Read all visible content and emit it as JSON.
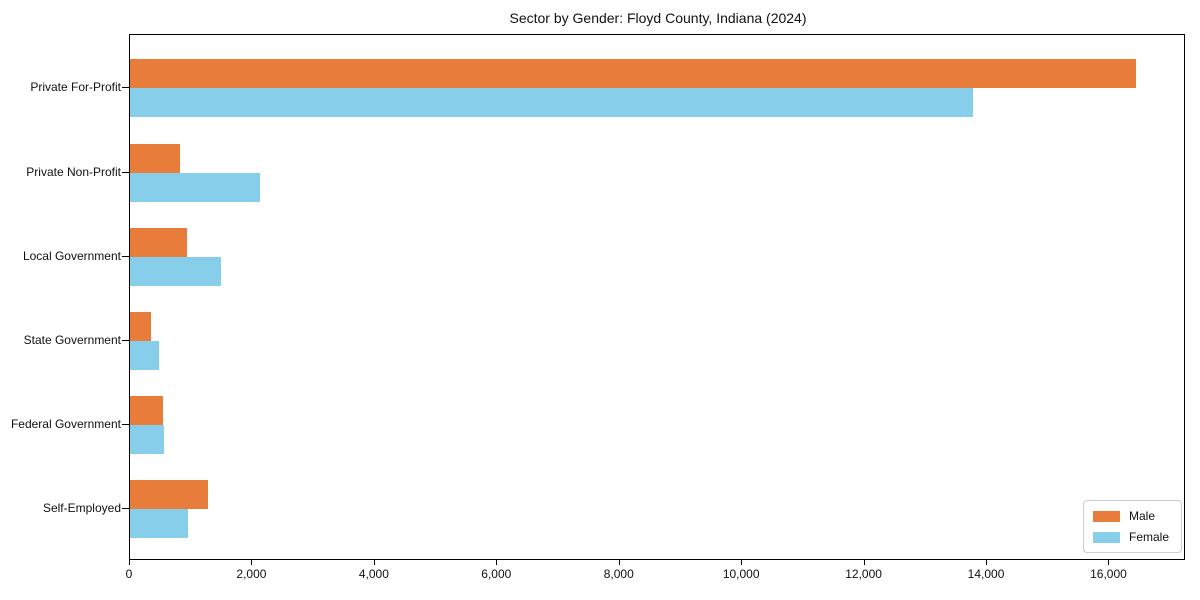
{
  "title": "Sector by Gender: Floyd County, Indiana (2024)",
  "colors": {
    "male": "#e87d3b",
    "female": "#87ceeb",
    "axis": "#000000",
    "legend_border": "#cccccc",
    "background": "#ffffff"
  },
  "legend": {
    "position": "lower-right",
    "items": [
      {
        "label": "Male",
        "color": "#e87d3b"
      },
      {
        "label": "Female",
        "color": "#87ceeb"
      }
    ]
  },
  "chart_data": {
    "type": "bar",
    "orientation": "horizontal",
    "title": "Sector by Gender: Floyd County, Indiana (2024)",
    "categories": [
      "Private For-Profit",
      "Private Non-Profit",
      "Local Government",
      "State Government",
      "Federal Government",
      "Self-Employed"
    ],
    "series": [
      {
        "name": "Male",
        "color": "#e87d3b",
        "values": [
          16430,
          810,
          930,
          350,
          545,
          1280
        ]
      },
      {
        "name": "Female",
        "color": "#87ceeb",
        "values": [
          13770,
          2120,
          1490,
          470,
          560,
          945
        ]
      }
    ],
    "xlabel": "",
    "ylabel": "",
    "xlim": [
      0,
      17250
    ],
    "x_ticks": [
      0,
      2000,
      4000,
      6000,
      8000,
      10000,
      12000,
      14000,
      16000
    ],
    "x_tick_labels": [
      "0",
      "2,000",
      "4,000",
      "6,000",
      "8,000",
      "10,000",
      "12,000",
      "14,000",
      "16,000"
    ],
    "grid": false,
    "legend_position": "lower right"
  }
}
